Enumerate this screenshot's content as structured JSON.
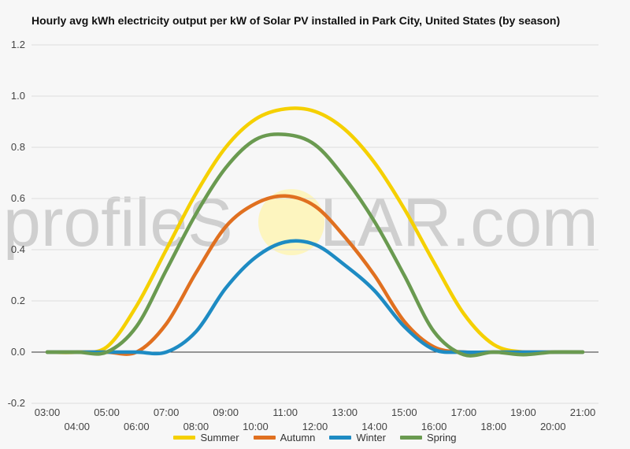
{
  "chart_data": {
    "type": "line",
    "title": "Hourly avg kWh electricity output per kW of Solar PV installed in Park City, United States (by season)",
    "xlabel": "",
    "ylabel": "",
    "ylim": [
      -0.2,
      1.2
    ],
    "yticks": [
      "1.2",
      "1.0",
      "0.8",
      "0.6",
      "0.4",
      "0.2",
      "0.0",
      "-0.2"
    ],
    "categories": [
      "03:00",
      "04:00",
      "05:00",
      "06:00",
      "07:00",
      "08:00",
      "09:00",
      "10:00",
      "11:00",
      "12:00",
      "13:00",
      "14:00",
      "15:00",
      "16:00",
      "17:00",
      "18:00",
      "19:00",
      "20:00",
      "21:00"
    ],
    "grid": true,
    "legend_position": "bottom",
    "series": [
      {
        "name": "Summer",
        "color": "#f5d000",
        "values": [
          0.0,
          0.0,
          0.02,
          0.18,
          0.4,
          0.62,
          0.8,
          0.91,
          0.95,
          0.94,
          0.87,
          0.74,
          0.56,
          0.35,
          0.15,
          0.03,
          0.0,
          0.0,
          0.0
        ]
      },
      {
        "name": "Autumn",
        "color": "#e07020",
        "values": [
          0.0,
          0.0,
          0.0,
          0.0,
          0.11,
          0.31,
          0.49,
          0.58,
          0.61,
          0.57,
          0.45,
          0.3,
          0.12,
          0.02,
          0.0,
          0.0,
          0.0,
          0.0,
          0.0
        ]
      },
      {
        "name": "Winter",
        "color": "#1e8bc3",
        "values": [
          0.0,
          0.0,
          0.0,
          0.0,
          0.0,
          0.08,
          0.25,
          0.37,
          0.43,
          0.42,
          0.34,
          0.24,
          0.1,
          0.01,
          0.0,
          0.0,
          0.0,
          0.0,
          0.0
        ]
      },
      {
        "name": "Spring",
        "color": "#6a9a50",
        "values": [
          0.0,
          0.0,
          0.0,
          0.1,
          0.32,
          0.54,
          0.72,
          0.83,
          0.85,
          0.81,
          0.68,
          0.51,
          0.3,
          0.08,
          -0.01,
          0.0,
          -0.01,
          0.0,
          0.0
        ]
      }
    ]
  },
  "watermark": {
    "left": "profileS",
    "right": "LAR.com"
  }
}
